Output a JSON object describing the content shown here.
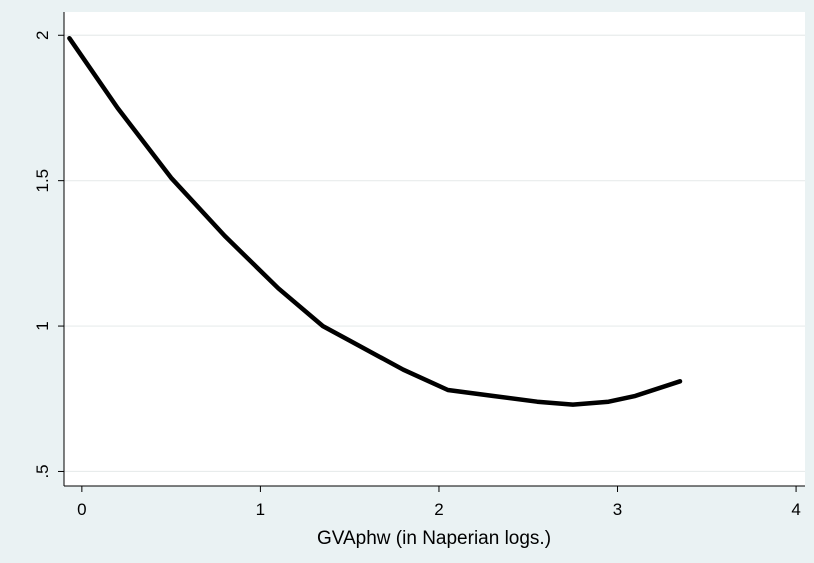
{
  "chart_data": {
    "type": "line",
    "title": "",
    "xlabel": "GVAphw (in Naperian logs.)",
    "ylabel": "",
    "xlim": [
      -0.1,
      4.05
    ],
    "ylim": [
      0.45,
      2.08
    ],
    "x_ticks": [
      {
        "value": 0,
        "label": "0"
      },
      {
        "value": 1,
        "label": "1"
      },
      {
        "value": 2,
        "label": "2"
      },
      {
        "value": 3,
        "label": "3"
      },
      {
        "value": 4,
        "label": "4"
      }
    ],
    "y_ticks": [
      {
        "value": 0.5,
        "label": ".5"
      },
      {
        "value": 1,
        "label": "1"
      },
      {
        "value": 1.5,
        "label": "1.5"
      },
      {
        "value": 2,
        "label": "2"
      }
    ],
    "grid": true,
    "series": [
      {
        "color": "#000000",
        "x": [
          -0.07,
          0.2,
          0.5,
          0.8,
          1.1,
          1.35,
          1.5,
          1.8,
          2.05,
          2.3,
          2.55,
          2.75,
          2.95,
          3.1,
          3.35
        ],
        "values": [
          1.99,
          1.75,
          1.51,
          1.31,
          1.13,
          1.0,
          0.95,
          0.85,
          0.78,
          0.76,
          0.74,
          0.73,
          0.74,
          0.76,
          0.81
        ]
      }
    ]
  }
}
